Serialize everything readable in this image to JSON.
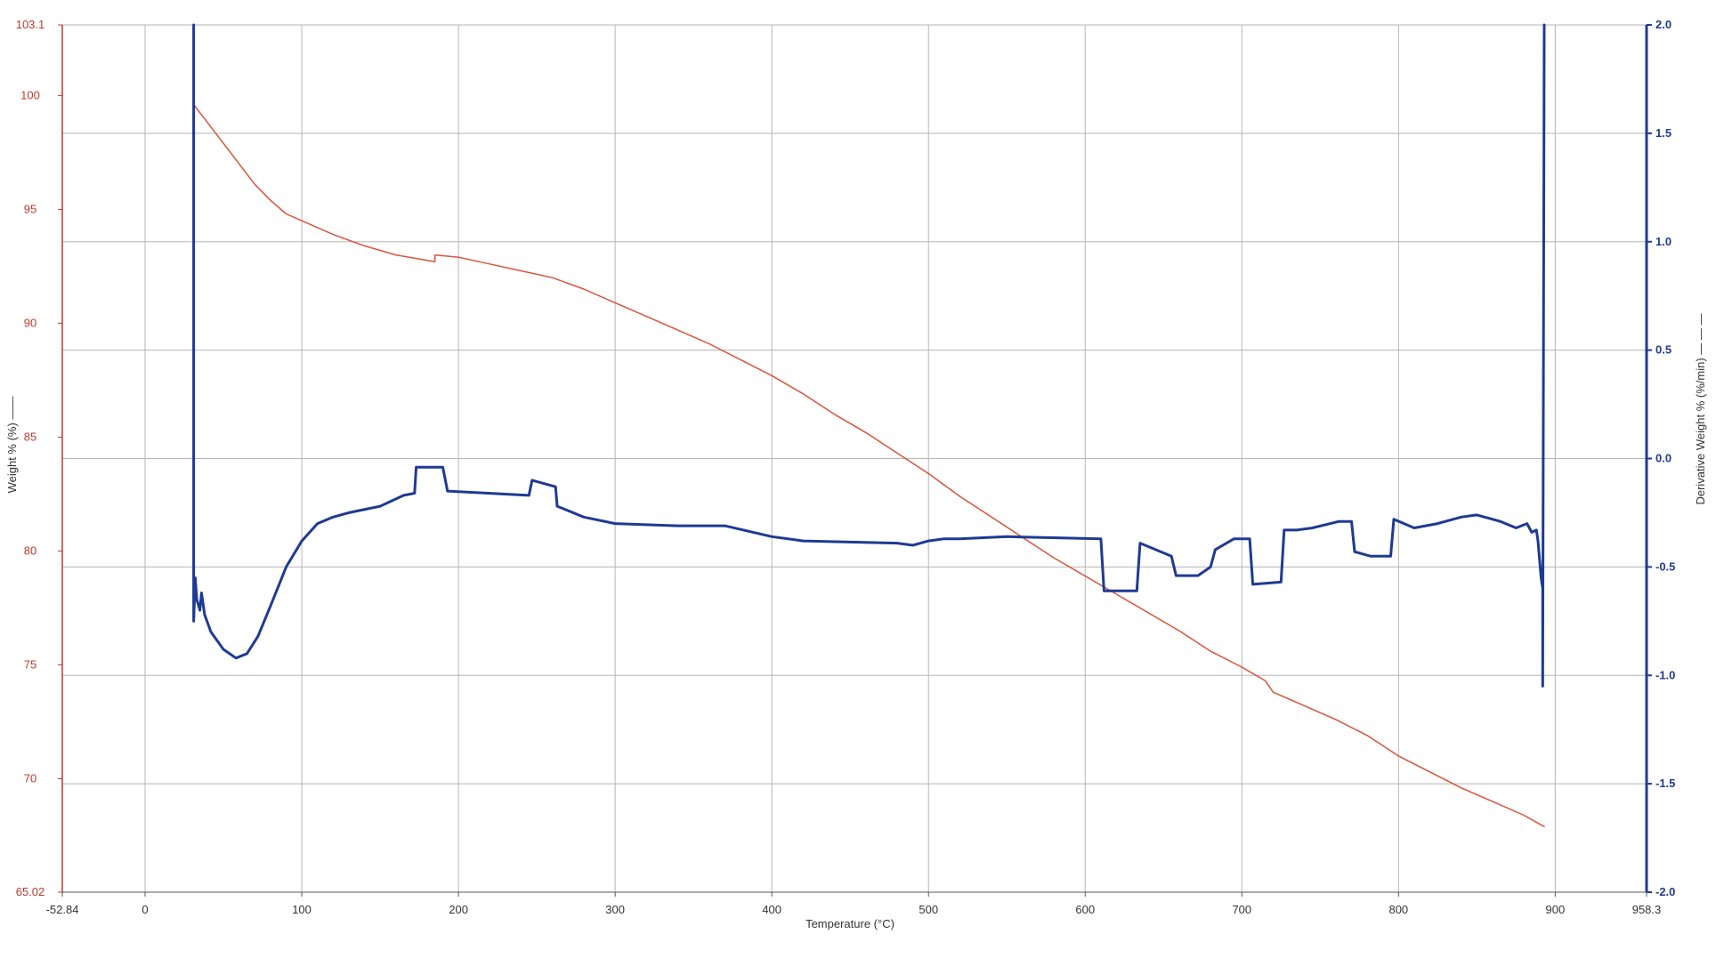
{
  "chart_data": {
    "type": "line",
    "title": "",
    "xlabel": "Temperature (°C)",
    "ylabel_left": "Weight % (%) ——",
    "ylabel_right": "Derivative Weight % (%/min) — — —",
    "xlim": [
      -52.84,
      958.3
    ],
    "ylim_left": [
      65.02,
      103.1
    ],
    "ylim_right": [
      -2.0,
      2.0
    ],
    "x_ticks": [
      -52.84,
      0,
      100,
      200,
      300,
      400,
      500,
      600,
      700,
      800,
      900,
      958.3
    ],
    "x_tick_labels": [
      "-52.84",
      "0",
      "100",
      "200",
      "300",
      "400",
      "500",
      "600",
      "700",
      "800",
      "900",
      "958.3"
    ],
    "y_left_ticks": [
      65.02,
      70,
      75,
      80,
      85,
      90,
      95,
      100,
      103.1
    ],
    "y_left_tick_labels": [
      "65.02",
      "70",
      "75",
      "80",
      "85",
      "90",
      "95",
      "100",
      "103.1"
    ],
    "y_right_ticks": [
      -2.0,
      -1.5,
      -1.0,
      -0.5,
      0.0,
      0.5,
      1.0,
      1.5,
      2.0
    ],
    "y_right_tick_labels": [
      "-2.0",
      "-1.5",
      "-1.0",
      "-0.5",
      "0.0",
      "0.5",
      "1.0",
      "1.5",
      "2.0"
    ],
    "grid": true,
    "colors": {
      "weight": "#d9533c",
      "derivative": "#1f3a93",
      "left_axis": "#c0392b",
      "right_axis": "#1f3a93",
      "grid": "#b5b5b5"
    },
    "series": [
      {
        "axis": "left",
        "points": [
          [
            31,
            99.6
          ],
          [
            40,
            98.8
          ],
          [
            50,
            97.9
          ],
          [
            60,
            97.0
          ],
          [
            70,
            96.1
          ],
          [
            80,
            95.4
          ],
          [
            90,
            94.8
          ],
          [
            100,
            94.5
          ],
          [
            120,
            93.9
          ],
          [
            140,
            93.4
          ],
          [
            160,
            93.0
          ],
          [
            185,
            92.7
          ],
          [
            185,
            93.0
          ],
          [
            200,
            92.9
          ],
          [
            220,
            92.6
          ],
          [
            240,
            92.3
          ],
          [
            260,
            92.0
          ],
          [
            280,
            91.5
          ],
          [
            300,
            90.9
          ],
          [
            320,
            90.3
          ],
          [
            340,
            89.7
          ],
          [
            360,
            89.1
          ],
          [
            380,
            88.4
          ],
          [
            400,
            87.7
          ],
          [
            420,
            86.9
          ],
          [
            440,
            86.0
          ],
          [
            460,
            85.2
          ],
          [
            480,
            84.3
          ],
          [
            500,
            83.4
          ],
          [
            520,
            82.4
          ],
          [
            540,
            81.5
          ],
          [
            560,
            80.6
          ],
          [
            580,
            79.7
          ],
          [
            600,
            78.9
          ],
          [
            620,
            78.1
          ],
          [
            640,
            77.3
          ],
          [
            660,
            76.5
          ],
          [
            680,
            75.6
          ],
          [
            700,
            74.9
          ],
          [
            715,
            74.3
          ],
          [
            720,
            73.8
          ],
          [
            740,
            73.2
          ],
          [
            760,
            72.6
          ],
          [
            780,
            71.9
          ],
          [
            800,
            71.0
          ],
          [
            820,
            70.3
          ],
          [
            840,
            69.6
          ],
          [
            860,
            69.0
          ],
          [
            880,
            68.4
          ],
          [
            893,
            67.9
          ]
        ]
      },
      {
        "axis": "right",
        "points": [
          [
            31,
            2.0
          ],
          [
            31,
            -0.75
          ],
          [
            32,
            -0.55
          ],
          [
            33,
            -0.65
          ],
          [
            35,
            -0.7
          ],
          [
            36,
            -0.62
          ],
          [
            38,
            -0.72
          ],
          [
            42,
            -0.8
          ],
          [
            50,
            -0.88
          ],
          [
            58,
            -0.92
          ],
          [
            65,
            -0.9
          ],
          [
            72,
            -0.82
          ],
          [
            80,
            -0.68
          ],
          [
            90,
            -0.5
          ],
          [
            100,
            -0.38
          ],
          [
            110,
            -0.3
          ],
          [
            120,
            -0.27
          ],
          [
            130,
            -0.25
          ],
          [
            150,
            -0.22
          ],
          [
            165,
            -0.17
          ],
          [
            172,
            -0.16
          ],
          [
            173,
            -0.04
          ],
          [
            190,
            -0.04
          ],
          [
            193,
            -0.15
          ],
          [
            245,
            -0.17
          ],
          [
            247,
            -0.1
          ],
          [
            262,
            -0.13
          ],
          [
            263,
            -0.22
          ],
          [
            280,
            -0.27
          ],
          [
            300,
            -0.3
          ],
          [
            340,
            -0.31
          ],
          [
            370,
            -0.31
          ],
          [
            400,
            -0.36
          ],
          [
            420,
            -0.38
          ],
          [
            480,
            -0.39
          ],
          [
            490,
            -0.4
          ],
          [
            500,
            -0.38
          ],
          [
            510,
            -0.37
          ],
          [
            520,
            -0.37
          ],
          [
            550,
            -0.36
          ],
          [
            610,
            -0.37
          ],
          [
            612,
            -0.61
          ],
          [
            633,
            -0.61
          ],
          [
            635,
            -0.39
          ],
          [
            655,
            -0.45
          ],
          [
            658,
            -0.54
          ],
          [
            672,
            -0.54
          ],
          [
            680,
            -0.5
          ],
          [
            683,
            -0.42
          ],
          [
            695,
            -0.37
          ],
          [
            705,
            -0.37
          ],
          [
            707,
            -0.58
          ],
          [
            725,
            -0.57
          ],
          [
            727,
            -0.33
          ],
          [
            735,
            -0.33
          ],
          [
            745,
            -0.32
          ],
          [
            762,
            -0.29
          ],
          [
            770,
            -0.29
          ],
          [
            772,
            -0.43
          ],
          [
            782,
            -0.45
          ],
          [
            795,
            -0.45
          ],
          [
            797,
            -0.28
          ],
          [
            810,
            -0.32
          ],
          [
            825,
            -0.3
          ],
          [
            840,
            -0.27
          ],
          [
            850,
            -0.26
          ],
          [
            865,
            -0.29
          ],
          [
            875,
            -0.32
          ],
          [
            882,
            -0.3
          ],
          [
            885,
            -0.34
          ],
          [
            888,
            -0.33
          ],
          [
            889,
            -0.38
          ],
          [
            891,
            -0.55
          ],
          [
            892,
            -0.6
          ],
          [
            892,
            -1.05
          ],
          [
            893,
            2.0
          ]
        ]
      }
    ]
  }
}
